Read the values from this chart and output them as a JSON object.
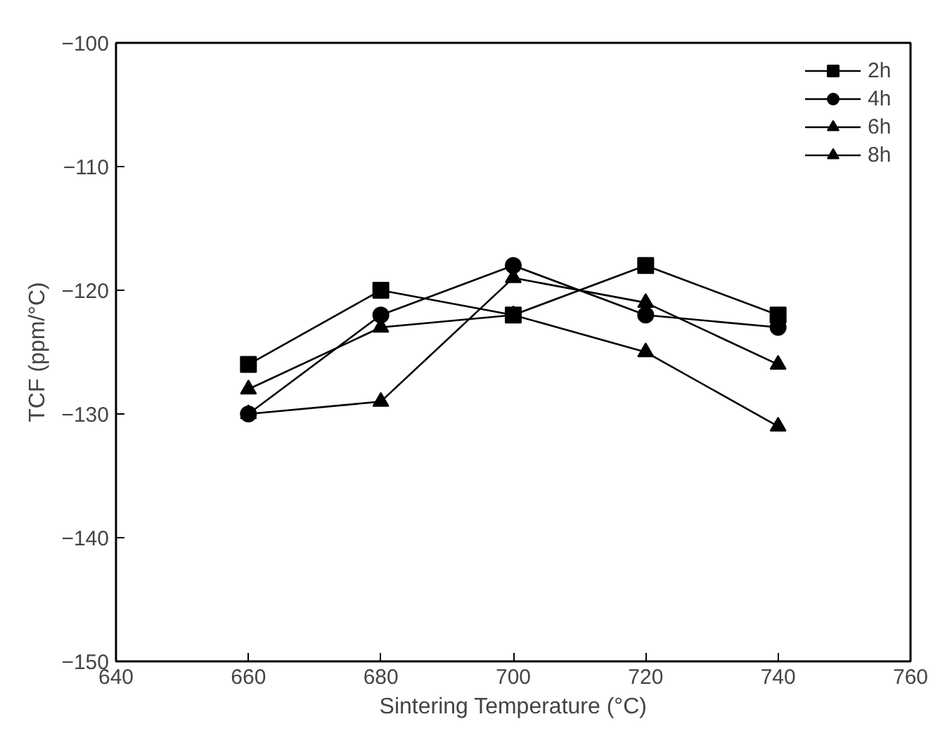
{
  "chart_data": {
    "type": "line",
    "xlabel": "Sintering Temperature (°C)",
    "ylabel": "TCF (ppm/°C)",
    "x": [
      660,
      680,
      700,
      720,
      740
    ],
    "series": [
      {
        "name": "2h",
        "color": "#000000",
        "marker": "square",
        "values": [
          -126,
          -120,
          -122,
          -118,
          -122
        ]
      },
      {
        "name": "4h",
        "color": "#000000",
        "marker": "circle",
        "values": [
          -130,
          -122,
          -118,
          -122,
          -123
        ]
      },
      {
        "name": "6h",
        "color": "#000000",
        "marker": "triangle",
        "values": [
          -130,
          -129,
          -119,
          -121,
          -126
        ]
      },
      {
        "name": "8h",
        "color": "#000000",
        "marker": "triangle",
        "values": [
          -128,
          -123,
          -122,
          -125,
          -131
        ]
      }
    ],
    "xlim": [
      640,
      760
    ],
    "xticks": [
      640,
      660,
      680,
      700,
      720,
      740,
      760
    ],
    "ylim": [
      -150,
      -100
    ],
    "yticks": [
      -150,
      -140,
      -130,
      -120,
      -110,
      -100
    ],
    "grid": false,
    "legend": "top right",
    "line_style": "solid"
  }
}
